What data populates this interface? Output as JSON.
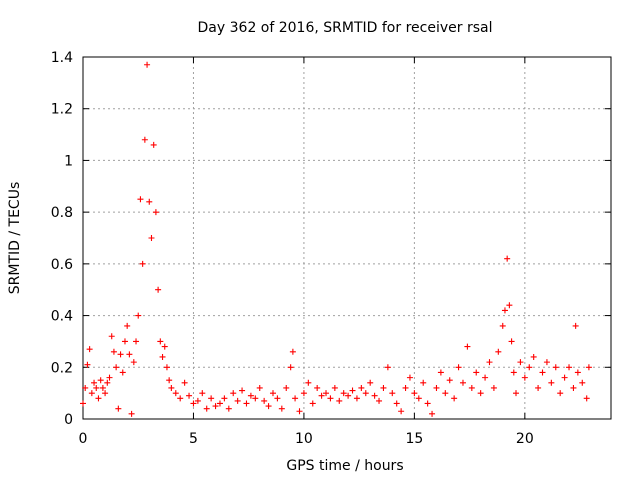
{
  "chart_data": {
    "type": "scatter",
    "title": "Day 362 of 2016, SRMTID for receiver rsal",
    "xlabel": "GPS time / hours",
    "ylabel": "SRMTID / TECUs",
    "xlim": [
      0,
      23.9
    ],
    "ylim": [
      0,
      1.4
    ],
    "xticks": [
      0,
      5,
      10,
      15,
      20
    ],
    "xtick_labels": [
      "0",
      "5",
      "10",
      "15",
      "20"
    ],
    "yticks": [
      0,
      0.2,
      0.4,
      0.6,
      0.8,
      1.0,
      1.2,
      1.4
    ],
    "ytick_labels": [
      "0",
      "0.2",
      "0.4",
      "0.6",
      "0.8",
      "1",
      "1.2",
      "1.4"
    ],
    "grid": true,
    "marker": "+",
    "color": "#ff0000",
    "series": [
      {
        "name": "SRMTID",
        "points": [
          [
            0.0,
            0.06
          ],
          [
            0.1,
            0.12
          ],
          [
            0.2,
            0.21
          ],
          [
            0.3,
            0.27
          ],
          [
            0.4,
            0.1
          ],
          [
            0.5,
            0.14
          ],
          [
            0.6,
            0.12
          ],
          [
            0.7,
            0.08
          ],
          [
            0.8,
            0.15
          ],
          [
            0.9,
            0.12
          ],
          [
            1.0,
            0.1
          ],
          [
            1.1,
            0.14
          ],
          [
            1.2,
            0.16
          ],
          [
            1.3,
            0.32
          ],
          [
            1.4,
            0.26
          ],
          [
            1.5,
            0.2
          ],
          [
            1.6,
            0.04
          ],
          [
            1.7,
            0.25
          ],
          [
            1.8,
            0.18
          ],
          [
            1.9,
            0.3
          ],
          [
            2.0,
            0.36
          ],
          [
            2.1,
            0.25
          ],
          [
            2.2,
            0.02
          ],
          [
            2.3,
            0.22
          ],
          [
            2.4,
            0.3
          ],
          [
            2.5,
            0.4
          ],
          [
            2.6,
            0.85
          ],
          [
            2.7,
            0.6
          ],
          [
            2.8,
            1.08
          ],
          [
            2.9,
            1.37
          ],
          [
            3.0,
            0.84
          ],
          [
            3.1,
            0.7
          ],
          [
            3.2,
            1.06
          ],
          [
            3.3,
            0.8
          ],
          [
            3.4,
            0.5
          ],
          [
            3.5,
            0.3
          ],
          [
            3.6,
            0.24
          ],
          [
            3.7,
            0.28
          ],
          [
            3.8,
            0.2
          ],
          [
            3.9,
            0.15
          ],
          [
            4.0,
            0.12
          ],
          [
            4.2,
            0.1
          ],
          [
            4.4,
            0.08
          ],
          [
            4.6,
            0.14
          ],
          [
            4.8,
            0.09
          ],
          [
            5.0,
            0.06
          ],
          [
            5.2,
            0.07
          ],
          [
            5.4,
            0.1
          ],
          [
            5.6,
            0.04
          ],
          [
            5.8,
            0.08
          ],
          [
            6.0,
            0.05
          ],
          [
            6.2,
            0.06
          ],
          [
            6.4,
            0.08
          ],
          [
            6.6,
            0.04
          ],
          [
            6.8,
            0.1
          ],
          [
            7.0,
            0.07
          ],
          [
            7.2,
            0.11
          ],
          [
            7.4,
            0.06
          ],
          [
            7.6,
            0.09
          ],
          [
            7.8,
            0.08
          ],
          [
            8.0,
            0.12
          ],
          [
            8.2,
            0.07
          ],
          [
            8.4,
            0.05
          ],
          [
            8.6,
            0.1
          ],
          [
            8.8,
            0.08
          ],
          [
            9.0,
            0.04
          ],
          [
            9.2,
            0.12
          ],
          [
            9.4,
            0.2
          ],
          [
            9.5,
            0.26
          ],
          [
            9.6,
            0.08
          ],
          [
            9.8,
            0.03
          ],
          [
            10.0,
            0.1
          ],
          [
            10.2,
            0.14
          ],
          [
            10.4,
            0.06
          ],
          [
            10.6,
            0.12
          ],
          [
            10.8,
            0.09
          ],
          [
            11.0,
            0.1
          ],
          [
            11.2,
            0.08
          ],
          [
            11.4,
            0.12
          ],
          [
            11.6,
            0.07
          ],
          [
            11.8,
            0.1
          ],
          [
            12.0,
            0.09
          ],
          [
            12.2,
            0.11
          ],
          [
            12.4,
            0.08
          ],
          [
            12.6,
            0.12
          ],
          [
            12.8,
            0.1
          ],
          [
            13.0,
            0.14
          ],
          [
            13.2,
            0.09
          ],
          [
            13.4,
            0.07
          ],
          [
            13.6,
            0.12
          ],
          [
            13.8,
            0.2
          ],
          [
            14.0,
            0.1
          ],
          [
            14.2,
            0.06
          ],
          [
            14.4,
            0.03
          ],
          [
            14.6,
            0.12
          ],
          [
            14.8,
            0.16
          ],
          [
            15.0,
            0.1
          ],
          [
            15.2,
            0.08
          ],
          [
            15.4,
            0.14
          ],
          [
            15.6,
            0.06
          ],
          [
            15.8,
            0.02
          ],
          [
            16.0,
            0.12
          ],
          [
            16.2,
            0.18
          ],
          [
            16.4,
            0.1
          ],
          [
            16.6,
            0.15
          ],
          [
            16.8,
            0.08
          ],
          [
            17.0,
            0.2
          ],
          [
            17.2,
            0.14
          ],
          [
            17.4,
            0.28
          ],
          [
            17.6,
            0.12
          ],
          [
            17.8,
            0.18
          ],
          [
            18.0,
            0.1
          ],
          [
            18.2,
            0.16
          ],
          [
            18.4,
            0.22
          ],
          [
            18.6,
            0.12
          ],
          [
            18.8,
            0.26
          ],
          [
            19.0,
            0.36
          ],
          [
            19.1,
            0.42
          ],
          [
            19.2,
            0.62
          ],
          [
            19.3,
            0.44
          ],
          [
            19.4,
            0.3
          ],
          [
            19.5,
            0.18
          ],
          [
            19.6,
            0.1
          ],
          [
            19.8,
            0.22
          ],
          [
            20.0,
            0.16
          ],
          [
            20.2,
            0.2
          ],
          [
            20.4,
            0.24
          ],
          [
            20.6,
            0.12
          ],
          [
            20.8,
            0.18
          ],
          [
            21.0,
            0.22
          ],
          [
            21.2,
            0.14
          ],
          [
            21.4,
            0.2
          ],
          [
            21.6,
            0.1
          ],
          [
            21.8,
            0.16
          ],
          [
            22.0,
            0.2
          ],
          [
            22.2,
            0.12
          ],
          [
            22.3,
            0.36
          ],
          [
            22.4,
            0.18
          ],
          [
            22.6,
            0.14
          ],
          [
            22.8,
            0.08
          ],
          [
            22.9,
            0.2
          ]
        ]
      }
    ]
  }
}
